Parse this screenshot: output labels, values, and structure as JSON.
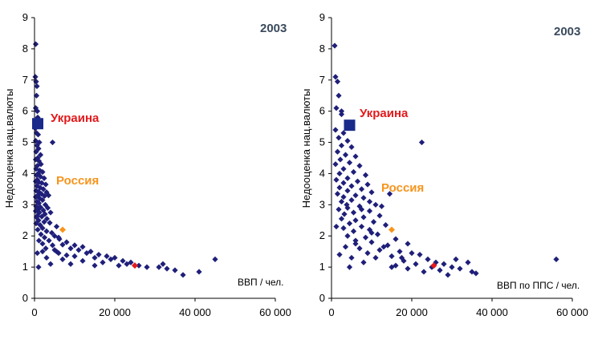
{
  "chart_data": [
    {
      "type": "scatter",
      "year_label": "2003",
      "xlabel": "ВВП / чел.",
      "ylabel": "Недооценка нац.валюты",
      "xlim": [
        0,
        60000
      ],
      "ylim": [
        0,
        9
      ],
      "x_ticks": [
        "0",
        "20 000",
        "40 000",
        "60 000"
      ],
      "y_ticks": [
        "0",
        "1",
        "2",
        "3",
        "4",
        "5",
        "6",
        "7",
        "8",
        "9"
      ],
      "colors": {
        "main": "#1f1f7a",
        "ukraine": "#e31a1c",
        "russia": "#f7941d",
        "highlight": "#e31a1c",
        "year": "#3a4a5c"
      },
      "highlights": {
        "ukraine": {
          "label": "Украина",
          "x": 800,
          "y": 5.6
        },
        "russia": {
          "label": "Россия",
          "x": 7000,
          "y": 2.2
        },
        "red_point": {
          "x": 25000,
          "y": 1.05
        }
      },
      "points": [
        [
          300,
          8.15
        ],
        [
          200,
          7.1
        ],
        [
          400,
          6.95
        ],
        [
          600,
          6.8
        ],
        [
          500,
          6.5
        ],
        [
          300,
          6.1
        ],
        [
          700,
          6.0
        ],
        [
          800,
          5.8
        ],
        [
          200,
          5.45
        ],
        [
          500,
          5.3
        ],
        [
          900,
          5.25
        ],
        [
          300,
          5.05
        ],
        [
          1200,
          5.0
        ],
        [
          600,
          4.9
        ],
        [
          1000,
          4.8
        ],
        [
          400,
          4.7
        ],
        [
          1500,
          4.6
        ],
        [
          800,
          4.5
        ],
        [
          300,
          4.45
        ],
        [
          1100,
          4.4
        ],
        [
          1600,
          4.3
        ],
        [
          700,
          4.25
        ],
        [
          400,
          4.15
        ],
        [
          1300,
          4.1
        ],
        [
          2000,
          4.05
        ],
        [
          900,
          4.0
        ],
        [
          500,
          3.95
        ],
        [
          1500,
          3.9
        ],
        [
          2400,
          3.85
        ],
        [
          700,
          3.8
        ],
        [
          300,
          3.75
        ],
        [
          1100,
          3.72
        ],
        [
          1800,
          3.7
        ],
        [
          2800,
          3.65
        ],
        [
          600,
          3.6
        ],
        [
          1400,
          3.55
        ],
        [
          2200,
          3.5
        ],
        [
          400,
          3.45
        ],
        [
          1000,
          3.42
        ],
        [
          3000,
          3.4
        ],
        [
          1700,
          3.35
        ],
        [
          800,
          3.3
        ],
        [
          2500,
          3.28
        ],
        [
          300,
          3.25
        ],
        [
          1300,
          3.2
        ],
        [
          3500,
          3.3
        ],
        [
          2000,
          3.15
        ],
        [
          600,
          3.1
        ],
        [
          1100,
          3.05
        ],
        [
          2700,
          3.0
        ],
        [
          400,
          2.95
        ],
        [
          1500,
          2.92
        ],
        [
          3300,
          2.9
        ],
        [
          900,
          2.85
        ],
        [
          2200,
          2.82
        ],
        [
          300,
          2.8
        ],
        [
          1200,
          2.75
        ],
        [
          4000,
          2.75
        ],
        [
          2600,
          2.7
        ],
        [
          700,
          2.65
        ],
        [
          1800,
          2.62
        ],
        [
          500,
          2.6
        ],
        [
          3100,
          2.55
        ],
        [
          1000,
          2.5
        ],
        [
          2400,
          2.45
        ],
        [
          3800,
          2.42
        ],
        [
          400,
          2.4
        ],
        [
          1400,
          2.35
        ],
        [
          5500,
          2.3
        ],
        [
          2000,
          2.25
        ],
        [
          800,
          2.2
        ],
        [
          3000,
          2.15
        ],
        [
          4300,
          2.1
        ],
        [
          1600,
          2.05
        ],
        [
          5000,
          2.0
        ],
        [
          2500,
          1.95
        ],
        [
          6200,
          1.9
        ],
        [
          1100,
          1.85
        ],
        [
          3600,
          1.85
        ],
        [
          8000,
          1.8
        ],
        [
          7000,
          1.72
        ],
        [
          4500,
          1.7
        ],
        [
          10000,
          1.7
        ],
        [
          12000,
          1.65
        ],
        [
          9000,
          1.6
        ],
        [
          5000,
          1.55
        ],
        [
          11000,
          1.55
        ],
        [
          14000,
          1.5
        ],
        [
          2000,
          1.5
        ],
        [
          6000,
          1.45
        ],
        [
          13000,
          1.45
        ],
        [
          16000,
          1.4
        ],
        [
          8000,
          1.38
        ],
        [
          10000,
          1.35
        ],
        [
          18000,
          1.35
        ],
        [
          15000,
          1.3
        ],
        [
          3000,
          1.3
        ],
        [
          7000,
          1.25
        ],
        [
          20000,
          1.3
        ],
        [
          22000,
          1.2
        ],
        [
          12000,
          1.2
        ],
        [
          24000,
          1.15
        ],
        [
          17000,
          1.15
        ],
        [
          9000,
          1.1
        ],
        [
          4000,
          1.1
        ],
        [
          26000,
          1.05
        ],
        [
          21000,
          1.05
        ],
        [
          15000,
          1.05
        ],
        [
          28000,
          1.0
        ],
        [
          31000,
          1.0
        ],
        [
          33000,
          0.95
        ],
        [
          1000,
          1.0
        ],
        [
          35000,
          0.9
        ],
        [
          37000,
          0.75
        ],
        [
          41000,
          0.85
        ],
        [
          45000,
          1.25
        ],
        [
          32000,
          1.1
        ],
        [
          23000,
          1.1
        ],
        [
          19000,
          1.25
        ],
        [
          700,
          1.45
        ],
        [
          4500,
          5.0
        ],
        [
          2000,
          1.75
        ],
        [
          6000,
          1.95
        ],
        [
          2800,
          1.6
        ],
        [
          5500,
          1.5
        ]
      ]
    },
    {
      "type": "scatter",
      "year_label": "2003",
      "xlabel": "ВВП по ППС / чел.",
      "ylabel": "Недооценка нац.валюты",
      "xlim": [
        0,
        60000
      ],
      "ylim": [
        0,
        9
      ],
      "x_ticks": [
        "0",
        "20 000",
        "40 000",
        "60 000"
      ],
      "y_ticks": [
        "0",
        "1",
        "2",
        "3",
        "4",
        "5",
        "6",
        "7",
        "8",
        "9"
      ],
      "colors": {
        "main": "#1f1f7a",
        "ukraine": "#e31a1c",
        "russia": "#f7941d",
        "highlight": "#e31a1c",
        "year": "#3a4a5c"
      },
      "highlights": {
        "ukraine": {
          "label": "Украина",
          "x": 4500,
          "y": 5.55
        },
        "russia": {
          "label": "Россия",
          "x": 15000,
          "y": 2.2
        },
        "red_point": {
          "x": 25500,
          "y": 1.05
        }
      },
      "points": [
        [
          800,
          8.1
        ],
        [
          1000,
          7.1
        ],
        [
          1500,
          6.95
        ],
        [
          1800,
          6.5
        ],
        [
          1200,
          6.1
        ],
        [
          2500,
          5.9
        ],
        [
          1000,
          5.4
        ],
        [
          3000,
          5.3
        ],
        [
          1800,
          5.15
        ],
        [
          4000,
          5.05
        ],
        [
          2500,
          4.9
        ],
        [
          5000,
          4.85
        ],
        [
          1500,
          4.7
        ],
        [
          3500,
          4.6
        ],
        [
          6000,
          4.55
        ],
        [
          2200,
          4.45
        ],
        [
          4500,
          4.35
        ],
        [
          1000,
          4.3
        ],
        [
          7000,
          4.25
        ],
        [
          3000,
          4.15
        ],
        [
          5500,
          4.05
        ],
        [
          2000,
          4.0
        ],
        [
          8500,
          3.95
        ],
        [
          4000,
          3.85
        ],
        [
          1200,
          3.8
        ],
        [
          6500,
          3.75
        ],
        [
          3000,
          3.7
        ],
        [
          9000,
          3.65
        ],
        [
          5000,
          3.6
        ],
        [
          2000,
          3.55
        ],
        [
          7500,
          3.5
        ],
        [
          4000,
          3.45
        ],
        [
          10000,
          3.4
        ],
        [
          1500,
          3.35
        ],
        [
          6000,
          3.3
        ],
        [
          3000,
          3.25
        ],
        [
          8000,
          3.22
        ],
        [
          5000,
          3.15
        ],
        [
          2500,
          3.1
        ],
        [
          11000,
          3.0
        ],
        [
          7000,
          2.95
        ],
        [
          4000,
          2.9
        ],
        [
          1800,
          2.85
        ],
        [
          9500,
          2.8
        ],
        [
          5500,
          2.75
        ],
        [
          3200,
          2.7
        ],
        [
          12000,
          2.65
        ],
        [
          8000,
          2.6
        ],
        [
          2500,
          2.55
        ],
        [
          6000,
          2.5
        ],
        [
          10500,
          2.45
        ],
        [
          4500,
          2.4
        ],
        [
          13500,
          2.35
        ],
        [
          7500,
          2.3
        ],
        [
          3000,
          2.25
        ],
        [
          9500,
          2.2
        ],
        [
          5500,
          2.15
        ],
        [
          11500,
          2.05
        ],
        [
          4000,
          2.0
        ],
        [
          8500,
          1.95
        ],
        [
          16000,
          1.9
        ],
        [
          6000,
          1.85
        ],
        [
          10000,
          1.8
        ],
        [
          19000,
          1.75
        ],
        [
          14000,
          1.7
        ],
        [
          3500,
          1.65
        ],
        [
          7000,
          1.6
        ],
        [
          12000,
          1.55
        ],
        [
          17000,
          1.5
        ],
        [
          9000,
          1.45
        ],
        [
          20000,
          1.45
        ],
        [
          22000,
          1.4
        ],
        [
          15000,
          1.35
        ],
        [
          5000,
          1.3
        ],
        [
          11000,
          1.3
        ],
        [
          24000,
          1.25
        ],
        [
          18000,
          1.2
        ],
        [
          26000,
          1.15
        ],
        [
          8000,
          1.15
        ],
        [
          21000,
          1.1
        ],
        [
          28000,
          1.1
        ],
        [
          16000,
          1.05
        ],
        [
          30000,
          1.0
        ],
        [
          25000,
          1.0
        ],
        [
          32000,
          0.95
        ],
        [
          19000,
          0.95
        ],
        [
          27000,
          0.9
        ],
        [
          35000,
          0.85
        ],
        [
          23000,
          0.85
        ],
        [
          36000,
          0.8
        ],
        [
          4500,
          1.0
        ],
        [
          15000,
          1.0
        ],
        [
          29000,
          0.75
        ],
        [
          56000,
          1.25
        ],
        [
          22500,
          5.0
        ],
        [
          6000,
          1.75
        ],
        [
          13000,
          1.65
        ],
        [
          2000,
          1.4
        ],
        [
          9500,
          3.1
        ],
        [
          14500,
          3.35
        ],
        [
          2500,
          6.0
        ],
        [
          10000,
          2.1
        ],
        [
          7500,
          2.85
        ],
        [
          31000,
          1.25
        ],
        [
          34000,
          1.15
        ],
        [
          1200,
          2.3
        ],
        [
          3800,
          3.0
        ],
        [
          12500,
          2.95
        ],
        [
          17500,
          1.3
        ]
      ]
    }
  ]
}
